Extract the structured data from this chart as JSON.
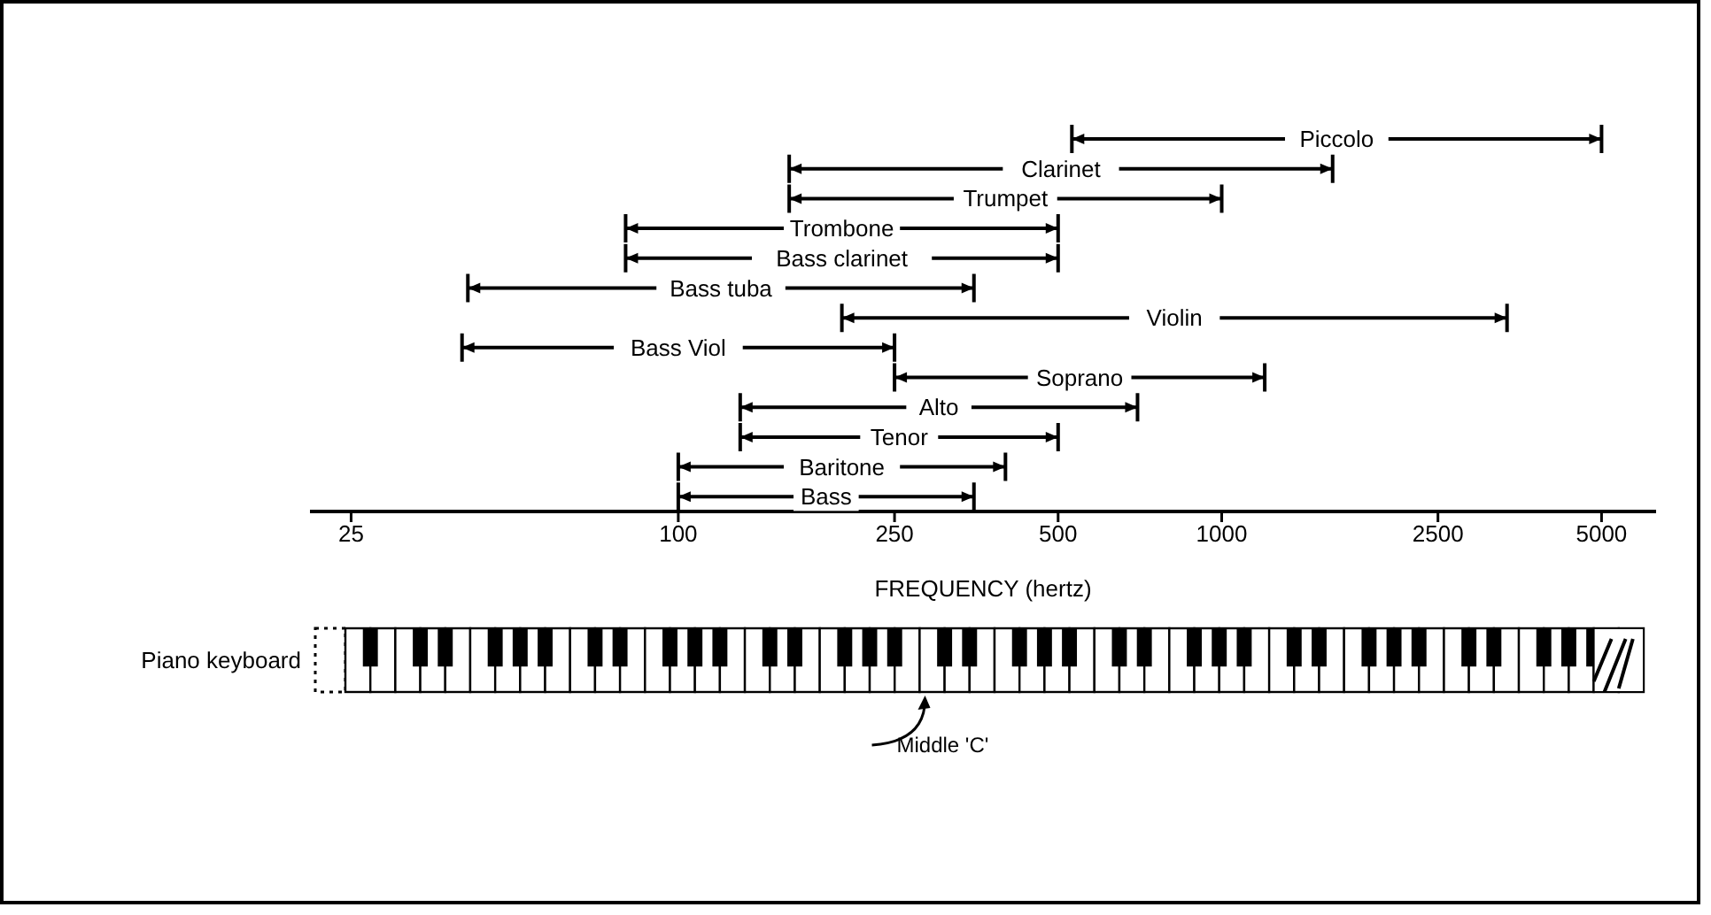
{
  "chart_data": {
    "type": "bar",
    "orientation": "horizontal",
    "log": "x",
    "xlabel": "FREQUENCY (hertz)",
    "categories": [
      "Piccolo",
      "Clarinet",
      "Trumpet",
      "Trombone",
      "Bass clarinet",
      "Bass tuba",
      "Violin",
      "Bass Viol",
      "Soprano",
      "Alto",
      "Tenor",
      "Baritone",
      "Bass"
    ],
    "base": [
      530,
      160,
      160,
      80,
      80,
      41,
      200,
      40,
      250,
      130,
      130,
      100,
      100
    ],
    "values": [
      4470,
      1440,
      840,
      420,
      420,
      309,
      3150,
      210,
      950,
      570,
      370,
      300,
      250
    ],
    "color": "#000000",
    "xlim": [
      21,
      6300
    ],
    "xticks": [
      25,
      100,
      250,
      500,
      1000,
      2500,
      5000
    ],
    "tick_labels": "x",
    "annotations": [
      "Piano keyboard",
      "Middle 'C'"
    ]
  }
}
